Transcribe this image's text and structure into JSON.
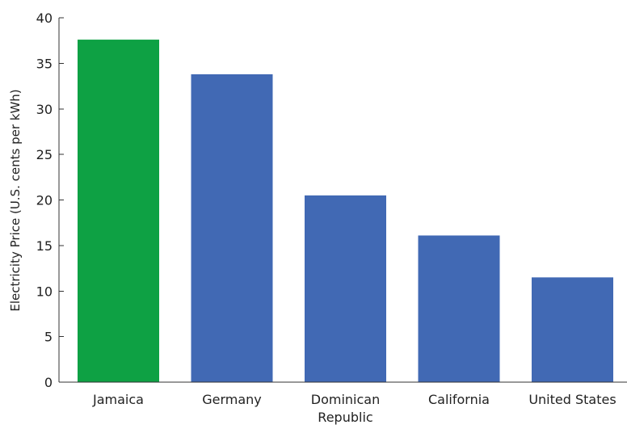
{
  "chart_data": {
    "type": "bar",
    "title": "",
    "xlabel": "",
    "ylabel": "Electricity Price (U.S. cents per kWh)",
    "ylim": [
      0,
      40
    ],
    "y_ticks": [
      0,
      5,
      10,
      15,
      20,
      25,
      30,
      35,
      40
    ],
    "grid": false,
    "legend": "none",
    "categories": [
      [
        "Jamaica"
      ],
      [
        "Germany"
      ],
      [
        "Dominican",
        "Republic"
      ],
      [
        "California"
      ],
      [
        "United States"
      ]
    ],
    "values": [
      37.6,
      33.8,
      20.5,
      16.1,
      11.5
    ],
    "bar_colors": [
      "#0ea144",
      "#4169b4",
      "#4169b4",
      "#4169b4",
      "#4169b4"
    ]
  }
}
